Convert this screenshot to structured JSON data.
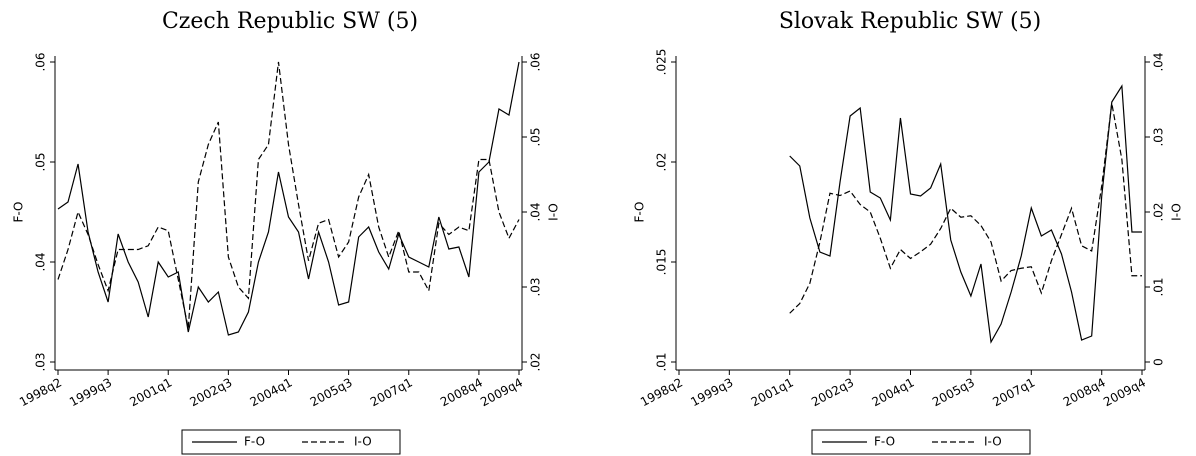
{
  "chart_data": [
    {
      "type": "line",
      "title": "Czech Republic SW (5)",
      "y_label": "F-O",
      "y2_label": "I-O",
      "categories": [
        "1998q2",
        null,
        null,
        null,
        null,
        "1999q3",
        null,
        null,
        null,
        null,
        null,
        "2001q1",
        null,
        null,
        null,
        null,
        null,
        "2002q3",
        null,
        null,
        null,
        null,
        null,
        "2004q1",
        null,
        null,
        null,
        null,
        null,
        "2005q3",
        null,
        null,
        null,
        null,
        null,
        "2007q1",
        null,
        null,
        null,
        null,
        null,
        null,
        "2008q4",
        null,
        null,
        null,
        "2009q4"
      ],
      "ylim": [
        0.03,
        0.06
      ],
      "yticks": [
        {
          "value": 0.03,
          "label": ".03"
        },
        {
          "value": 0.04,
          "label": ".04"
        },
        {
          "value": 0.05,
          "label": ".05"
        },
        {
          "value": 0.06,
          "label": ".06"
        }
      ],
      "y2lim": [
        0.02,
        0.06
      ],
      "y2ticks": [
        {
          "value": 0.02,
          "label": ".02"
        },
        {
          "value": 0.03,
          "label": ".03"
        },
        {
          "value": 0.04,
          "label": ".04"
        },
        {
          "value": 0.05,
          "label": ".05"
        },
        {
          "value": 0.06,
          "label": ".06"
        }
      ],
      "grid": false,
      "legend": "bottom",
      "series": [
        {
          "name": "F-O",
          "color": "#000000",
          "line_style": "solid",
          "axis": "y",
          "values": [
            0.0453,
            0.046,
            0.0498,
            0.043,
            0.039,
            0.036,
            0.0428,
            0.04,
            0.038,
            0.0345,
            0.04,
            0.0385,
            0.039,
            0.033,
            0.0375,
            0.036,
            0.037,
            0.0327,
            0.033,
            0.035,
            0.04,
            0.043,
            0.049,
            0.0445,
            0.043,
            0.0383,
            0.043,
            0.04,
            0.0357,
            0.036,
            0.0425,
            0.0435,
            0.041,
            0.0393,
            0.0428,
            0.0405,
            0.04,
            0.0395,
            0.0445,
            0.0413,
            0.0415,
            0.0385,
            0.049,
            0.05,
            0.0553,
            0.0547,
            0.06
          ]
        },
        {
          "name": "I-O",
          "color": "#000000",
          "line_style": "dashed",
          "axis": "y2",
          "values": [
            0.031,
            0.035,
            0.04,
            0.037,
            0.033,
            0.0295,
            0.035,
            0.035,
            0.035,
            0.0355,
            0.038,
            0.0375,
            0.031,
            0.0245,
            0.044,
            0.049,
            0.052,
            0.034,
            0.03,
            0.0285,
            0.047,
            0.049,
            0.06,
            0.049,
            0.041,
            0.0335,
            0.0385,
            0.039,
            0.034,
            0.036,
            0.042,
            0.045,
            0.038,
            0.034,
            0.0375,
            0.032,
            0.032,
            0.0295,
            0.0385,
            0.037,
            0.038,
            0.0375,
            0.047,
            0.047,
            0.04,
            0.0365,
            0.039
          ]
        }
      ]
    },
    {
      "type": "line",
      "title": "Slovak Republic SW (5)",
      "y_label": "F-O",
      "y2_label": "I-O",
      "categories": [
        "1998q2",
        null,
        null,
        null,
        null,
        "1999q3",
        null,
        null,
        null,
        null,
        null,
        "2001q1",
        null,
        null,
        null,
        null,
        null,
        "2002q3",
        null,
        null,
        null,
        null,
        null,
        "2004q1",
        null,
        null,
        null,
        null,
        null,
        "2005q3",
        null,
        null,
        null,
        null,
        null,
        "2007q1",
        null,
        null,
        null,
        null,
        null,
        null,
        "2008q4",
        null,
        null,
        null,
        "2009q4"
      ],
      "ylim": [
        0.01,
        0.025
      ],
      "yticks": [
        {
          "value": 0.01,
          "label": ".01"
        },
        {
          "value": 0.015,
          "label": ".015"
        },
        {
          "value": 0.02,
          "label": ".02"
        },
        {
          "value": 0.025,
          "label": ".025"
        }
      ],
      "y2lim": [
        0,
        0.04
      ],
      "y2ticks": [
        0,
        {
          "value": 0.01,
          "label": ".01"
        },
        {
          "value": 0.02,
          "label": ".02"
        },
        {
          "value": 0.03,
          "label": ".03"
        },
        {
          "value": 0.04,
          "label": ".04"
        }
      ],
      "grid": false,
      "legend": "bottom",
      "series": [
        {
          "name": "F-O",
          "color": "#000000",
          "line_style": "solid",
          "axis": "y",
          "values": [
            null,
            null,
            null,
            null,
            null,
            null,
            null,
            null,
            null,
            null,
            null,
            0.0203,
            0.0198,
            0.0172,
            0.0155,
            0.0153,
            0.019,
            0.0223,
            0.0227,
            0.0185,
            0.0182,
            0.0171,
            0.0222,
            0.0184,
            0.0183,
            0.0187,
            0.0199,
            0.0161,
            0.0145,
            0.0133,
            0.0149,
            0.011,
            0.0119,
            0.0135,
            0.0153,
            0.0177,
            0.0163,
            0.0166,
            0.0154,
            0.0135,
            0.0111,
            0.0113,
            0.0183,
            0.023,
            0.0238,
            0.0165,
            0.0165
          ]
        },
        {
          "name": "I-O",
          "color": "#000000",
          "line_style": "dashed",
          "axis": "y2",
          "values": [
            null,
            null,
            null,
            null,
            null,
            null,
            null,
            null,
            null,
            null,
            null,
            0.0065,
            0.0078,
            0.0105,
            0.016,
            0.0225,
            0.0222,
            0.0228,
            0.021,
            0.02,
            0.0165,
            0.0125,
            0.015,
            0.0138,
            0.0147,
            0.0157,
            0.0178,
            0.0205,
            0.0193,
            0.0195,
            0.0182,
            0.016,
            0.0108,
            0.0122,
            0.0125,
            0.0127,
            0.0092,
            0.0135,
            0.017,
            0.0205,
            0.0155,
            0.0148,
            0.0235,
            0.0345,
            0.027,
            0.0115,
            0.0115
          ]
        }
      ]
    }
  ]
}
